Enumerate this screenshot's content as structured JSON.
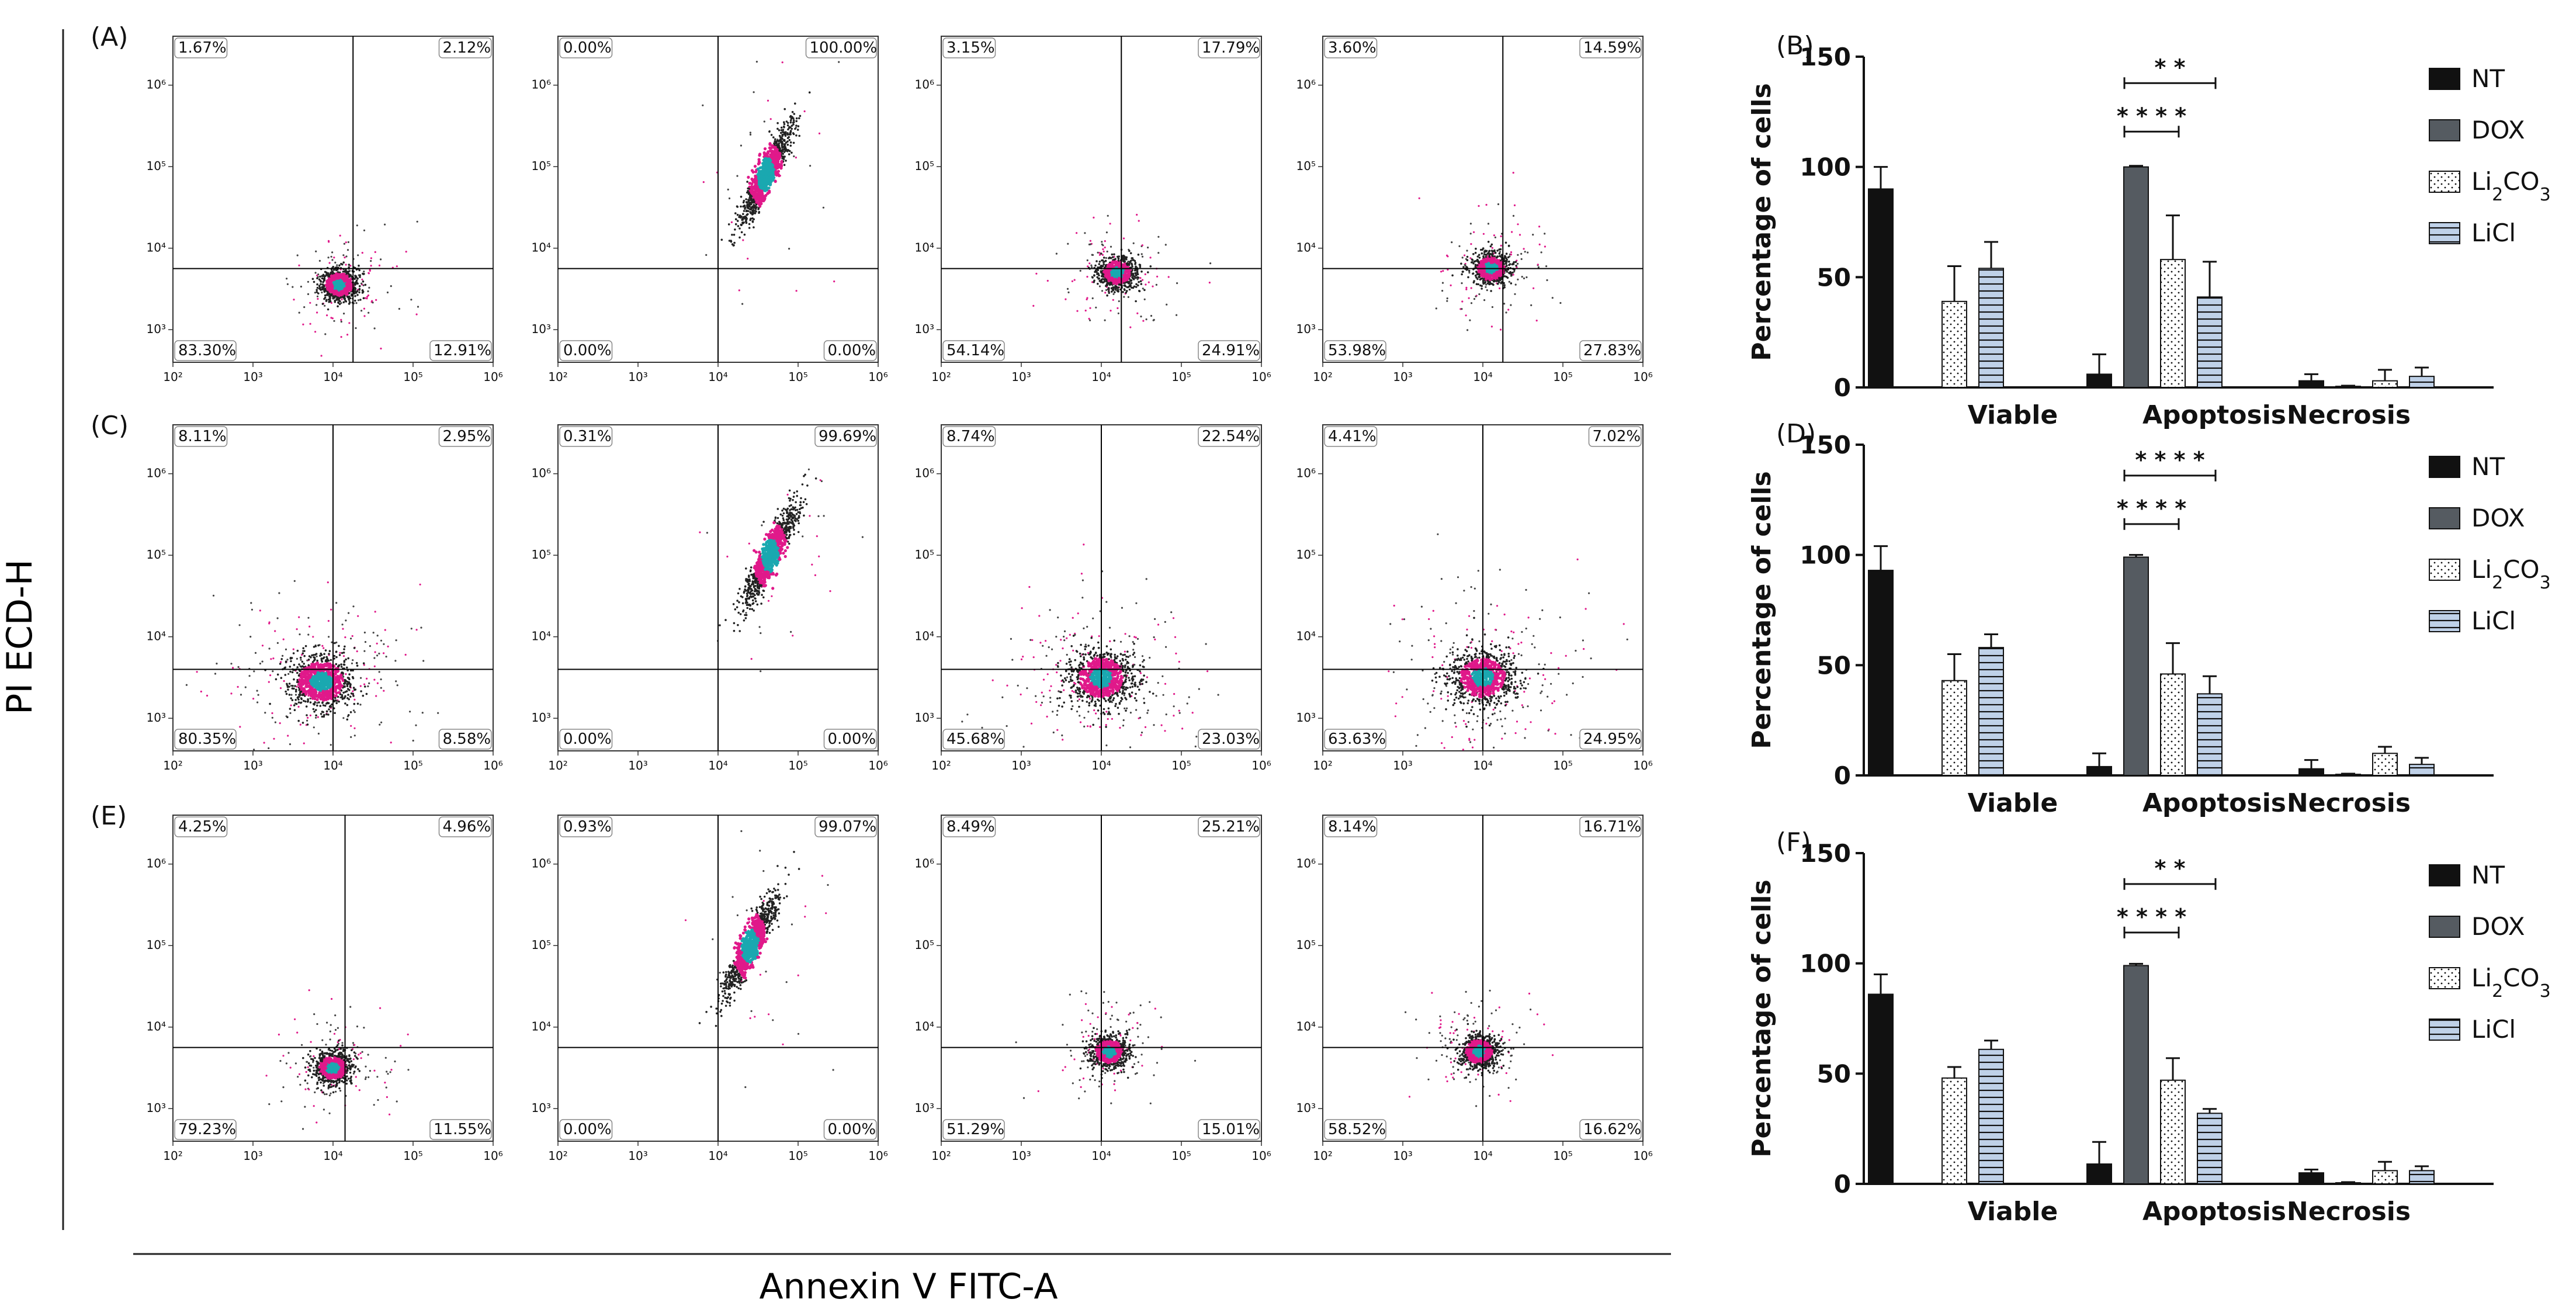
{
  "figure": {
    "y_axis_title": "PI ECD-H",
    "x_axis_title": "Annexin V FITC-A",
    "colors": {
      "NT": "#111111",
      "DOX": "#555b61",
      "Li2CO3": "#ffffff",
      "LiCl": "#bfd1e8",
      "density_low": "#222222",
      "density_mid": "#e0198a",
      "density_high": "#1aa8b0",
      "gate": "#000000"
    }
  },
  "chart_data": [
    {
      "type": "scatter",
      "panel": "(A)",
      "xlabel": "Annexin V FITC-A",
      "ylabel": "PI ECD-H",
      "axis_scale": "log",
      "x_ticks": [
        "10²",
        "10³",
        "10⁴",
        "10⁵",
        "10⁶"
      ],
      "y_ticks": [
        "10³",
        "10⁴",
        "10⁵",
        "10⁶"
      ],
      "plots": [
        {
          "quadrants": {
            "UL": "1.67%",
            "UR": "2.12%",
            "LL": "83.30%",
            "LR": "12.91%"
          },
          "gate_x": 4.25,
          "gate_y": 3.75,
          "cluster": {
            "x": 4.08,
            "y": 3.55
          },
          "spread": "compact"
        },
        {
          "quadrants": {
            "UL": "0.00%",
            "UR": "100.00%",
            "LL": "0.00%",
            "LR": "0.00%"
          },
          "gate_x": 4.0,
          "gate_y": 3.75,
          "cluster": {
            "x": 4.6,
            "y": 4.9
          },
          "spread": "diagonal"
        },
        {
          "quadrants": {
            "UL": "3.15%",
            "UR": "17.79%",
            "LL": "54.14%",
            "LR": "24.91%"
          },
          "gate_x": 4.25,
          "gate_y": 3.75,
          "cluster": {
            "x": 4.2,
            "y": 3.7
          },
          "spread": "compact"
        },
        {
          "quadrants": {
            "UL": "3.60%",
            "UR": "14.59%",
            "LL": "53.98%",
            "LR": "27.83%"
          },
          "gate_x": 4.25,
          "gate_y": 3.75,
          "cluster": {
            "x": 4.1,
            "y": 3.75
          },
          "spread": "compact"
        }
      ]
    },
    {
      "type": "bar",
      "panel": "(B)",
      "ylabel": "Percentage of cells",
      "ylim": [
        0,
        150
      ],
      "y_ticks": [
        0,
        50,
        100,
        150
      ],
      "categories": [
        "Viable",
        "Apoptosis",
        "Necrosis"
      ],
      "series": [
        {
          "name": "NT",
          "values": [
            90,
            6,
            3
          ],
          "errors": [
            10,
            9,
            3
          ]
        },
        {
          "name": "DOX",
          "values": [
            0,
            100,
            0.5
          ],
          "errors": [
            0,
            0.5,
            0.3
          ]
        },
        {
          "name": "Li₂CO₃",
          "values": [
            39,
            58,
            3
          ],
          "errors": [
            16,
            20,
            5
          ]
        },
        {
          "name": "LiCl",
          "values": [
            54,
            41,
            5
          ],
          "errors": [
            12,
            16,
            4
          ]
        }
      ],
      "legend": [
        "NT",
        "DOX",
        "Li₂CO₃",
        "LiCl"
      ],
      "annotations": [
        {
          "text": "* *",
          "from_series": 1,
          "to_series": 3,
          "category": 1,
          "level": 138
        },
        {
          "text": "* * * *",
          "from_series": 1,
          "to_series": 2,
          "category": 1,
          "level": 116
        }
      ]
    },
    {
      "type": "scatter",
      "panel": "(C)",
      "xlabel": "Annexin V FITC-A",
      "ylabel": "PI ECD-H",
      "axis_scale": "log",
      "x_ticks": [
        "10²",
        "10³",
        "10⁴",
        "10⁵",
        "10⁶"
      ],
      "y_ticks": [
        "10³",
        "10⁴",
        "10⁵",
        "10⁶"
      ],
      "plots": [
        {
          "quadrants": {
            "UL": "8.11%",
            "UR": "2.95%",
            "LL": "80.35%",
            "LR": "8.58%"
          },
          "gate_x": 4.0,
          "gate_y": 3.6,
          "cluster": {
            "x": 3.85,
            "y": 3.45
          },
          "spread": "wide"
        },
        {
          "quadrants": {
            "UL": "0.31%",
            "UR": "99.69%",
            "LL": "0.00%",
            "LR": "0.00%"
          },
          "gate_x": 4.0,
          "gate_y": 3.6,
          "cluster": {
            "x": 4.65,
            "y": 5.0
          },
          "spread": "diagonal"
        },
        {
          "quadrants": {
            "UL": "8.74%",
            "UR": "22.54%",
            "LL": "45.68%",
            "LR": "23.03%"
          },
          "gate_x": 4.0,
          "gate_y": 3.6,
          "cluster": {
            "x": 4.0,
            "y": 3.5
          },
          "spread": "wide"
        },
        {
          "quadrants": {
            "UL": "4.41%",
            "UR": "7.02%",
            "LL": "63.63%",
            "LR": "24.95%"
          },
          "gate_x": 4.0,
          "gate_y": 3.6,
          "cluster": {
            "x": 4.0,
            "y": 3.5
          },
          "spread": "wide"
        }
      ]
    },
    {
      "type": "bar",
      "panel": "(D)",
      "ylabel": "Percentage of cells",
      "ylim": [
        0,
        150
      ],
      "y_ticks": [
        0,
        50,
        100,
        150
      ],
      "categories": [
        "Viable",
        "Apoptosis",
        "Necrosis"
      ],
      "series": [
        {
          "name": "NT",
          "values": [
            93,
            4,
            3
          ],
          "errors": [
            11,
            6,
            4
          ]
        },
        {
          "name": "DOX",
          "values": [
            0,
            99,
            0.5
          ],
          "errors": [
            0,
            1,
            0.3
          ]
        },
        {
          "name": "Li₂CO₃",
          "values": [
            43,
            46,
            10
          ],
          "errors": [
            12,
            14,
            3
          ]
        },
        {
          "name": "LiCl",
          "values": [
            58,
            37,
            5
          ],
          "errors": [
            6,
            8,
            3
          ]
        }
      ],
      "legend": [
        "NT",
        "DOX",
        "Li₂CO₃",
        "LiCl"
      ],
      "annotations": [
        {
          "text": "* * * *",
          "from_series": 1,
          "to_series": 3,
          "category": 1,
          "level": 136
        },
        {
          "text": "* * * *",
          "from_series": 1,
          "to_series": 2,
          "category": 1,
          "level": 114
        }
      ]
    },
    {
      "type": "scatter",
      "panel": "(E)",
      "xlabel": "Annexin V FITC-A",
      "ylabel": "PI ECD-H",
      "axis_scale": "log",
      "x_ticks": [
        "10²",
        "10³",
        "10⁴",
        "10⁵",
        "10⁶"
      ],
      "y_ticks": [
        "10³",
        "10⁴",
        "10⁵",
        "10⁶"
      ],
      "plots": [
        {
          "quadrants": {
            "UL": "4.25%",
            "UR": "4.96%",
            "LL": "79.23%",
            "LR": "11.55%"
          },
          "gate_x": 4.15,
          "gate_y": 3.75,
          "cluster": {
            "x": 4.0,
            "y": 3.5
          },
          "spread": "compact"
        },
        {
          "quadrants": {
            "UL": "0.93%",
            "UR": "99.07%",
            "LL": "0.00%",
            "LR": "0.00%"
          },
          "gate_x": 4.0,
          "gate_y": 3.75,
          "cluster": {
            "x": 4.4,
            "y": 5.0
          },
          "spread": "diagonal"
        },
        {
          "quadrants": {
            "UL": "8.49%",
            "UR": "25.21%",
            "LL": "51.29%",
            "LR": "15.01%"
          },
          "gate_x": 4.0,
          "gate_y": 3.75,
          "cluster": {
            "x": 4.1,
            "y": 3.7
          },
          "spread": "compact"
        },
        {
          "quadrants": {
            "UL": "8.14%",
            "UR": "16.71%",
            "LL": "58.52%",
            "LR": "16.62%"
          },
          "gate_x": 4.0,
          "gate_y": 3.75,
          "cluster": {
            "x": 3.95,
            "y": 3.7
          },
          "spread": "compact"
        }
      ]
    },
    {
      "type": "bar",
      "panel": "(F)",
      "ylabel": "Percentage of cells",
      "ylim": [
        0,
        150
      ],
      "y_ticks": [
        0,
        50,
        100,
        150
      ],
      "categories": [
        "Viable",
        "Apoptosis",
        "Necrosis"
      ],
      "series": [
        {
          "name": "NT",
          "values": [
            86,
            9,
            5
          ],
          "errors": [
            9,
            10,
            1.5
          ]
        },
        {
          "name": "DOX",
          "values": [
            0,
            99,
            0.5
          ],
          "errors": [
            0,
            0.8,
            0.3
          ]
        },
        {
          "name": "Li₂CO₃",
          "values": [
            48,
            47,
            6
          ],
          "errors": [
            5,
            10,
            4
          ]
        },
        {
          "name": "LiCl",
          "values": [
            61,
            32,
            6
          ],
          "errors": [
            4,
            2,
            2
          ]
        }
      ],
      "legend": [
        "NT",
        "DOX",
        "Li₂CO₃",
        "LiCl"
      ],
      "annotations": [
        {
          "text": "* *",
          "from_series": 1,
          "to_series": 3,
          "category": 1,
          "level": 136
        },
        {
          "text": "* * * *",
          "from_series": 1,
          "to_series": 2,
          "category": 1,
          "level": 114
        }
      ]
    }
  ]
}
